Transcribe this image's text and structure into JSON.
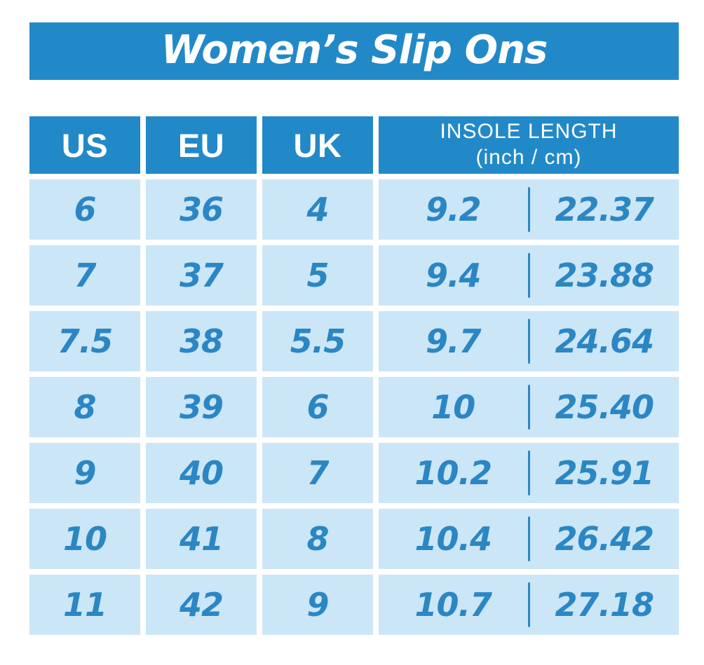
{
  "page": {
    "title": "Women’s Slip Ons"
  },
  "colors": {
    "header_blue": "#2289C8",
    "cell_blue": "#CBE6F7",
    "value_blue": "#2B86C4",
    "background": "#FFFFFF",
    "header_text": "#FFFFFF"
  },
  "table": {
    "columns": [
      {
        "label": "US"
      },
      {
        "label": "EU"
      },
      {
        "label": "UK"
      },
      {
        "label_line1": "INSOLE LENGTH",
        "label_line2": "(inch / cm)"
      }
    ],
    "rows": [
      {
        "us": "6",
        "eu": "36",
        "uk": "4",
        "inch": "9.2",
        "cm": "22.37"
      },
      {
        "us": "7",
        "eu": "37",
        "uk": "5",
        "inch": "9.4",
        "cm": "23.88"
      },
      {
        "us": "7.5",
        "eu": "38",
        "uk": "5.5",
        "inch": "9.7",
        "cm": "24.64"
      },
      {
        "us": "8",
        "eu": "39",
        "uk": "6",
        "inch": "10",
        "cm": "25.40"
      },
      {
        "us": "9",
        "eu": "40",
        "uk": "7",
        "inch": "10.2",
        "cm": "25.91"
      },
      {
        "us": "10",
        "eu": "41",
        "uk": "8",
        "inch": "10.4",
        "cm": "26.42"
      },
      {
        "us": "11",
        "eu": "42",
        "uk": "9",
        "inch": "10.7",
        "cm": "27.18"
      }
    ]
  },
  "chart_data": {
    "type": "table",
    "title": "Women’s Slip Ons",
    "columns": [
      "US",
      "EU",
      "UK",
      "Insole Length (inch)",
      "Insole Length (cm)"
    ],
    "rows": [
      [
        "6",
        "36",
        "4",
        9.2,
        22.37
      ],
      [
        "7",
        "37",
        "5",
        9.4,
        23.88
      ],
      [
        "7.5",
        "38",
        "5.5",
        9.7,
        24.64
      ],
      [
        "8",
        "39",
        "6",
        10.0,
        25.4
      ],
      [
        "9",
        "40",
        "7",
        10.2,
        25.91
      ],
      [
        "10",
        "41",
        "8",
        10.4,
        26.42
      ],
      [
        "11",
        "42",
        "9",
        10.7,
        27.18
      ]
    ]
  }
}
